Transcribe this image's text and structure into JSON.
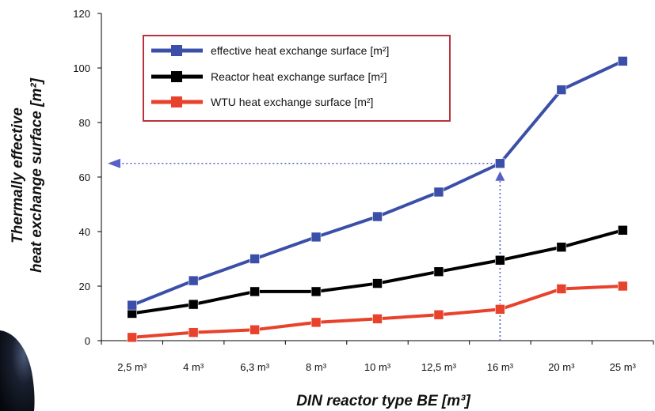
{
  "chart_data": {
    "type": "line",
    "categories": [
      "2,5 m³",
      "4 m³",
      "6,3 m³",
      "8 m³",
      "10 m³",
      "12,5 m³",
      "16 m³",
      "20 m³",
      "25 m³"
    ],
    "series": [
      {
        "name": "effective heat exchange surface [m²]",
        "color": "#3b4fa8",
        "values": [
          13,
          22,
          30,
          38,
          45.5,
          54.5,
          65,
          92,
          102.5
        ]
      },
      {
        "name": "Reactor heat exchange surface [m²]",
        "color": "#000000",
        "values": [
          10,
          13.3,
          18,
          18,
          21,
          25.3,
          29.5,
          34.3,
          40.5
        ]
      },
      {
        "name": "WTU heat exchange surface [m²]",
        "color": "#e8412c",
        "values": [
          1.2,
          3,
          4,
          6.7,
          8,
          9.5,
          11.5,
          19,
          20
        ]
      }
    ],
    "title": "",
    "xlabel": "DIN reactor type BE [m³]",
    "ylabel_line1": "Thermally effective",
    "ylabel_line2": "heat exchange surface [m²]",
    "ylim": [
      0,
      120
    ],
    "yticks": [
      0,
      20,
      40,
      60,
      80,
      100,
      120
    ],
    "grid": false,
    "legend": "top-left",
    "annotation": {
      "x_index": 6,
      "y": 65,
      "color": "#5560c8"
    }
  }
}
